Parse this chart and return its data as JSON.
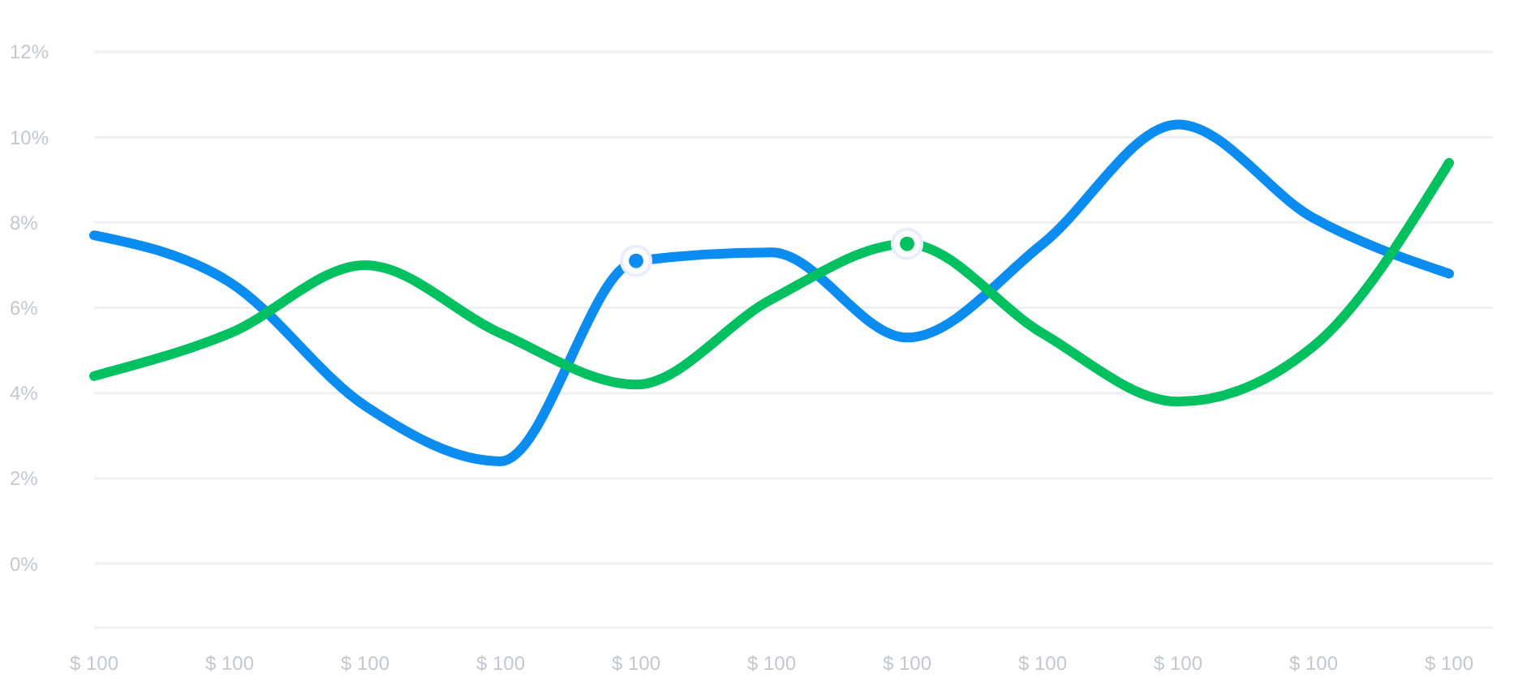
{
  "chart_data": {
    "type": "line",
    "categories": [
      "$ 100",
      "$ 100",
      "$ 100",
      "$ 100",
      "$ 100",
      "$ 100",
      "$ 100",
      "$ 100",
      "$ 100",
      "$ 100",
      "$ 100"
    ],
    "series": [
      {
        "color": "#0a8cf0",
        "values": [
          7.7,
          6.6,
          3.7,
          2.4,
          7.1,
          7.3,
          5.3,
          7.5,
          10.3,
          8.1,
          6.8
        ]
      },
      {
        "color": "#00c060",
        "values": [
          4.4,
          5.4,
          7.0,
          5.4,
          4.2,
          6.2,
          7.5,
          5.4,
          3.8,
          5.1,
          9.4
        ]
      },
      {
        "type": "scatter",
        "marker": "circle",
        "color": "#0a8cf0",
        "values": [
          null,
          null,
          null,
          null,
          7.1,
          null,
          null,
          null,
          null,
          null,
          null
        ]
      },
      {
        "type": "scatter",
        "marker": "circle",
        "color": "#00c060",
        "values": [
          null,
          null,
          null,
          null,
          null,
          null,
          7.5,
          null,
          null,
          null,
          null
        ]
      }
    ],
    "ylim": [
      -1.5,
      12
    ],
    "yticks": [
      {
        "value": 0,
        "label": "0%"
      },
      {
        "value": 2,
        "label": "2%"
      },
      {
        "value": 4,
        "label": "4%"
      },
      {
        "value": 6,
        "label": "6%"
      },
      {
        "value": 8,
        "label": "8%"
      },
      {
        "value": 10,
        "label": "10%"
      },
      {
        "value": 12,
        "label": "12%"
      }
    ],
    "grid": "y",
    "line_style": "solid"
  }
}
